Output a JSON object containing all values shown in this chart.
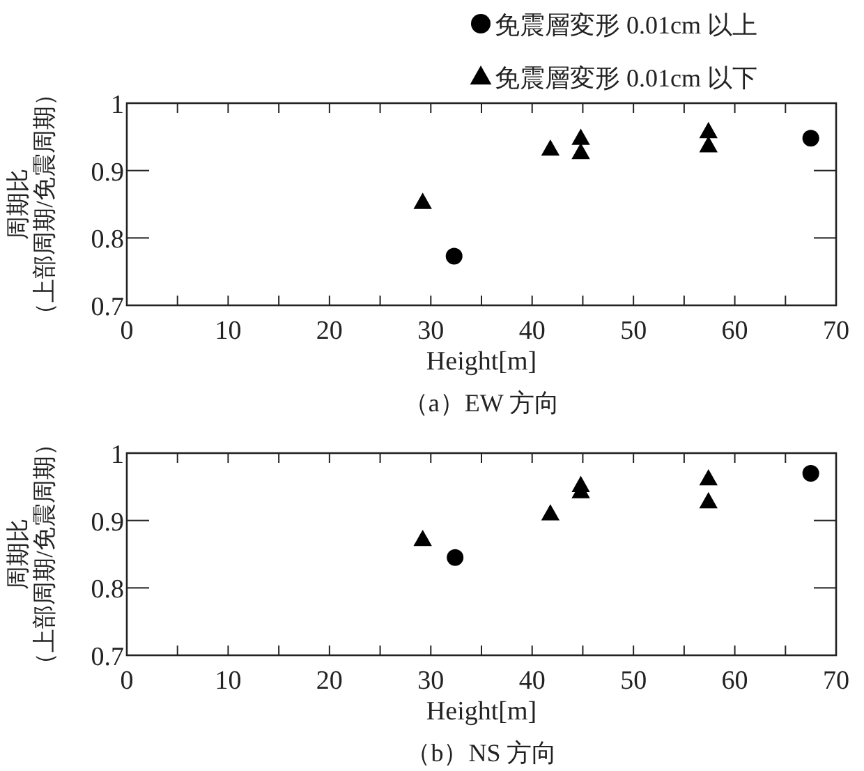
{
  "chart_data": [
    {
      "type": "scatter",
      "title": "（a）EW 方向",
      "xlabel": "Height[m]",
      "ylabel": [
        "周期比",
        "（上部周期/免震周期）"
      ],
      "xlim": [
        0,
        70
      ],
      "ylim": [
        0.7,
        1
      ],
      "xticks": [
        0,
        {
          "value": 5,
          "label": null
        },
        10,
        {
          "value": 15,
          "label": null
        },
        20,
        {
          "value": 25,
          "label": null
        },
        30,
        {
          "value": 35,
          "label": null
        },
        40,
        {
          "value": 45,
          "label": null
        },
        50,
        {
          "value": 55,
          "label": null
        },
        60,
        {
          "value": 65,
          "label": null
        },
        70
      ],
      "yticks": [
        0.7,
        0.8,
        0.9,
        1
      ],
      "grid": false,
      "legend": "top right",
      "series": [
        {
          "name": "免震層変形 0.01cm 以上",
          "color": "#000000",
          "marker": "circle",
          "x": [
            32.3,
            67.5
          ],
          "values": [
            0.773,
            0.948
          ]
        },
        {
          "name": "免震層変形 0.01cm 以下",
          "color": "#000000",
          "marker": "triangle",
          "x": [
            29.2,
            41.8,
            44.8,
            44.8,
            57.4,
            57.4
          ],
          "values": [
            0.853,
            0.932,
            0.948,
            0.927,
            0.958,
            0.937
          ]
        }
      ]
    },
    {
      "type": "scatter",
      "title": "（b）NS 方向",
      "xlabel": "Height[m]",
      "ylabel": [
        "周期比",
        "（上部周期/免震周期）"
      ],
      "xlim": [
        0,
        70
      ],
      "ylim": [
        0.7,
        1
      ],
      "xticks": [
        0,
        {
          "value": 5,
          "label": null
        },
        10,
        {
          "value": 15,
          "label": null
        },
        20,
        {
          "value": 25,
          "label": null
        },
        30,
        {
          "value": 35,
          "label": null
        },
        40,
        {
          "value": 45,
          "label": null
        },
        50,
        {
          "value": 55,
          "label": null
        },
        60,
        {
          "value": 65,
          "label": null
        },
        70
      ],
      "yticks": [
        0.7,
        0.8,
        0.9,
        1
      ],
      "grid": false,
      "series": [
        {
          "color": "#000000",
          "marker": "circle",
          "x": [
            32.4,
            67.5
          ],
          "values": [
            0.845,
            0.97
          ]
        },
        {
          "color": "#000000",
          "marker": "triangle",
          "x": [
            29.2,
            41.8,
            44.8,
            44.8,
            57.4,
            57.4
          ],
          "values": [
            0.872,
            0.91,
            0.952,
            0.943,
            0.962,
            0.928
          ]
        }
      ]
    }
  ]
}
